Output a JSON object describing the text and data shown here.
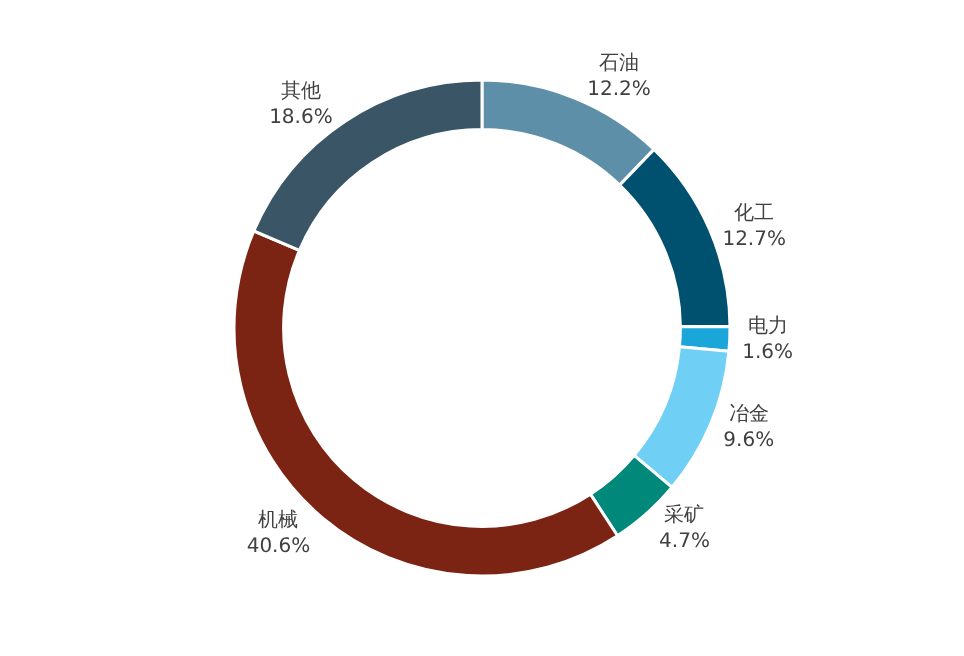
{
  "chart_data": {
    "type": "donut",
    "categories": [
      "石油",
      "化工",
      "电力",
      "冶金",
      "采矿",
      "机械",
      "其他"
    ],
    "values": [
      12.2,
      12.7,
      1.6,
      9.6,
      4.7,
      40.6,
      18.6
    ],
    "value_labels": [
      "12.2%",
      "12.7%",
      "1.6%",
      "9.6%",
      "4.7%",
      "40.6%",
      "18.6%"
    ],
    "colors": [
      "#5e8fa9",
      "#00506f",
      "#1aa6d8",
      "#6fcff5",
      "#00897b",
      "#7b2413",
      "#3a5666"
    ],
    "legend": false
  }
}
